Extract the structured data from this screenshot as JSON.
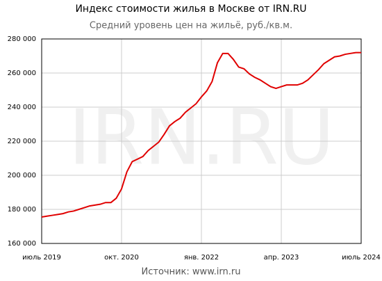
{
  "chart_data": {
    "type": "line",
    "title": "Индекс стоимости жилья в Москве от IRN.RU",
    "subtitle": "Средний уровень цен на жильё, руб./кв.м.",
    "watermark": "IRN.RU",
    "source": "Источник: www.irn.ru",
    "x": [
      "2019-07",
      "2019-08",
      "2019-09",
      "2019-10",
      "2019-11",
      "2019-12",
      "2020-01",
      "2020-02",
      "2020-03",
      "2020-04",
      "2020-05",
      "2020-06",
      "2020-07",
      "2020-08",
      "2020-09",
      "2020-10",
      "2020-11",
      "2020-12",
      "2021-01",
      "2021-02",
      "2021-03",
      "2021-04",
      "2021-05",
      "2021-06",
      "2021-07",
      "2021-08",
      "2021-09",
      "2021-10",
      "2021-11",
      "2021-12",
      "2022-01",
      "2022-02",
      "2022-03",
      "2022-04",
      "2022-05",
      "2022-06",
      "2022-07",
      "2022-08",
      "2022-09",
      "2022-10",
      "2022-11",
      "2022-12",
      "2023-01",
      "2023-02",
      "2023-03",
      "2023-04",
      "2023-05",
      "2023-06",
      "2023-07",
      "2023-08",
      "2023-09",
      "2023-10",
      "2023-11",
      "2023-12",
      "2024-01",
      "2024-02",
      "2024-03",
      "2024-04",
      "2024-05",
      "2024-06",
      "2024-07"
    ],
    "series": [
      {
        "name": "Индекс стоимости жилья",
        "color": "#e00000",
        "values": [
          175500,
          176000,
          176500,
          177000,
          177500,
          178500,
          179000,
          180000,
          181000,
          182000,
          182500,
          183000,
          184000,
          184000,
          186500,
          192000,
          202000,
          208000,
          209500,
          211000,
          214500,
          217000,
          219500,
          224000,
          229000,
          231500,
          233500,
          237000,
          239500,
          242000,
          246000,
          249500,
          255000,
          266000,
          271500,
          271500,
          268000,
          263500,
          262500,
          259500,
          257500,
          256000,
          254000,
          252000,
          251000,
          252000,
          253000,
          253000,
          253000,
          254000,
          256000,
          259000,
          262000,
          265500,
          267500,
          269500,
          270000,
          271000,
          271500,
          272000,
          272000
        ]
      }
    ],
    "xlim": [
      "2019-07",
      "2024-07"
    ],
    "xticks": [
      {
        "value": "2019-07",
        "label": "июль 2019"
      },
      {
        "value": "2020-10",
        "label": "окт. 2020"
      },
      {
        "value": "2022-01",
        "label": "янв. 2022"
      },
      {
        "value": "2023-04",
        "label": "апр. 2023"
      },
      {
        "value": "2024-07",
        "label": "июль 2024"
      }
    ],
    "ylim": [
      160000,
      280000
    ],
    "yticks": [
      {
        "value": 160000,
        "label": "160 000"
      },
      {
        "value": 180000,
        "label": "180 000"
      },
      {
        "value": 200000,
        "label": "200 000"
      },
      {
        "value": 220000,
        "label": "220 000"
      },
      {
        "value": 240000,
        "label": "240 000"
      },
      {
        "value": 260000,
        "label": "260 000"
      },
      {
        "value": 280000,
        "label": "280 000"
      }
    ],
    "grid": true
  }
}
